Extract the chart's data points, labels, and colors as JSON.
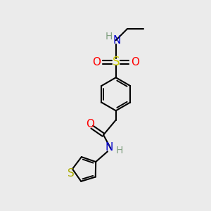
{
  "bg_color": "#ebebeb",
  "bond_color": "#000000",
  "bond_width": 1.5,
  "font_size": 10,
  "colors": {
    "H": "#7f9f7f",
    "N": "#0000cc",
    "O": "#ff0000",
    "S_sulfonyl": "#cccc00",
    "S_thio": "#aaaa00"
  }
}
